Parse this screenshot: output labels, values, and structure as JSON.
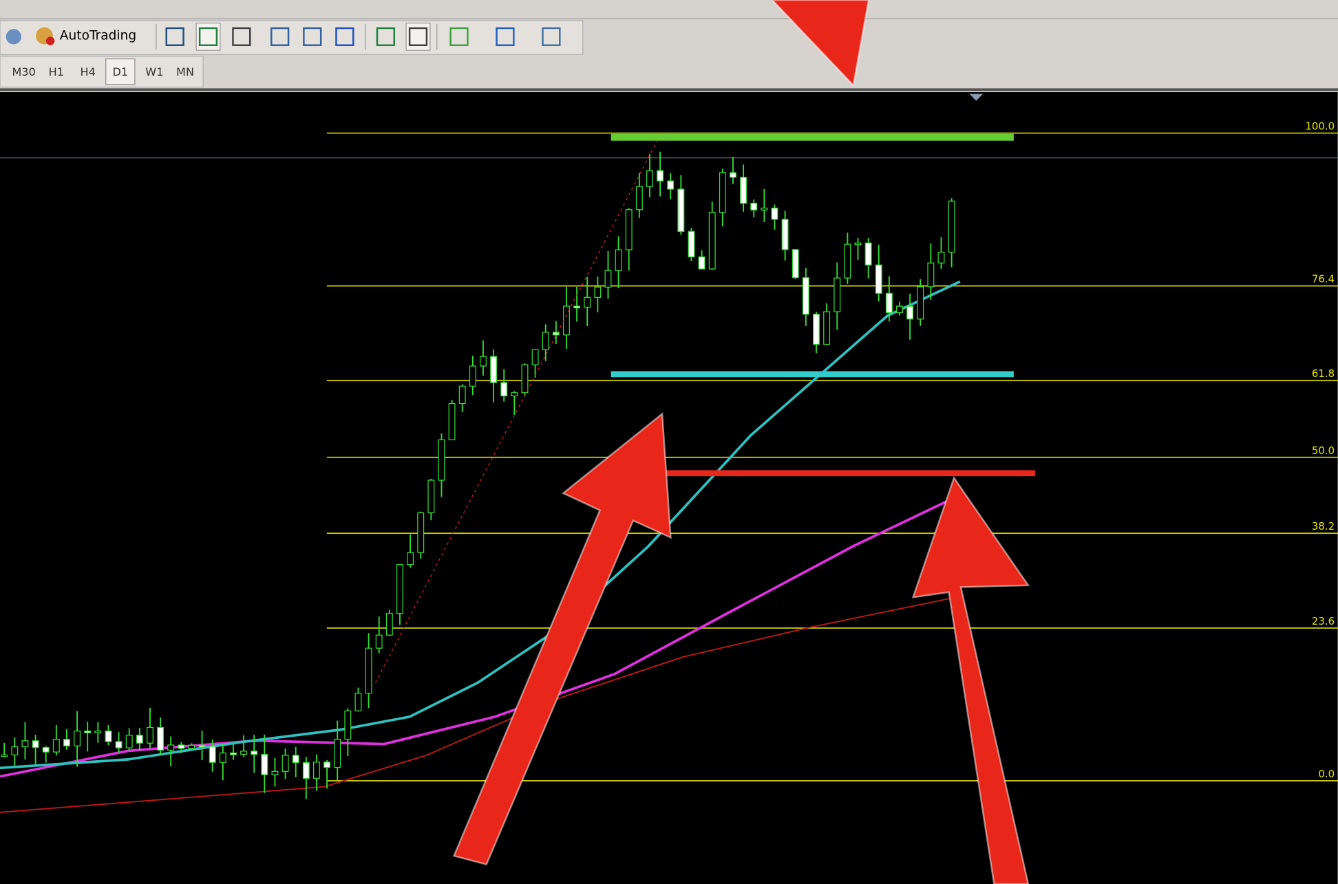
{
  "toolbar": {
    "autotrading": "AutoTrading"
  },
  "timeframes": [
    "M30",
    "H1",
    "H4",
    "D1",
    "W1",
    "MN"
  ],
  "fibonacci_levels": [
    "100.0",
    "76.4",
    "61.8",
    "50.0",
    "38.2",
    "23.6",
    "0.0"
  ]
}
